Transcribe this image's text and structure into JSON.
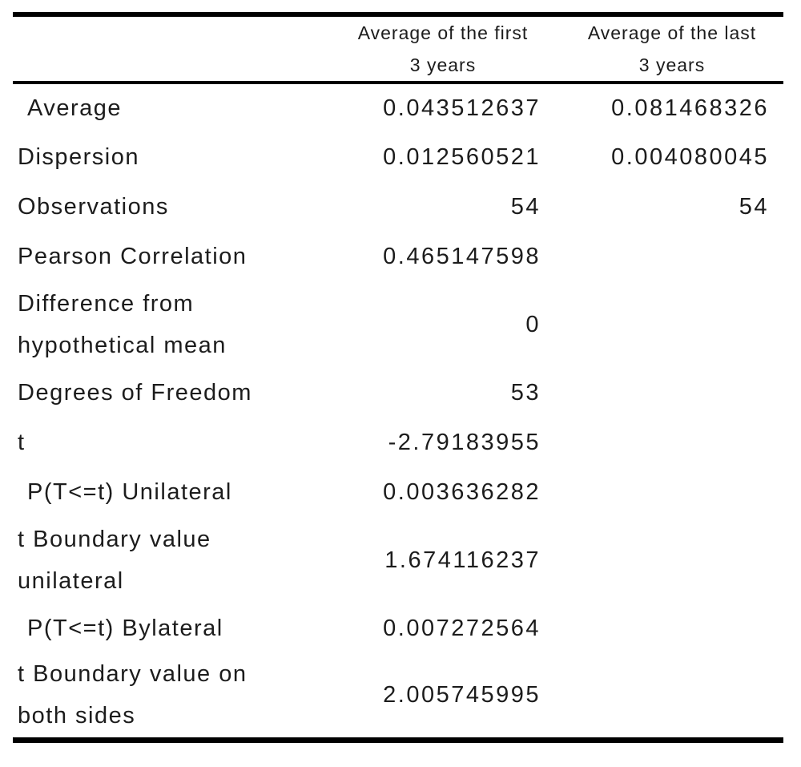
{
  "colors": {
    "background": "#ffffff",
    "text": "#1c1c1c",
    "rule": "#000000"
  },
  "chart_data": {
    "type": "table",
    "columns": {
      "label_header": "",
      "col1_header": "Average of the first\n3 years",
      "col2_header": "Average of the last\n3 years"
    },
    "rows": [
      {
        "label": "Average",
        "col1": "0.043512637",
        "col2": "0.081468326"
      },
      {
        "label": "Dispersion",
        "col1": "0.012560521",
        "col2": "0.004080045"
      },
      {
        "label": "Observations",
        "col1": "54",
        "col2": "54"
      },
      {
        "label": "Pearson Correlation",
        "col1": "0.465147598",
        "col2": ""
      },
      {
        "label": "Difference from\nhypothetical mean",
        "col1": "0",
        "col2": ""
      },
      {
        "label": "Degrees of Freedom",
        "col1": "53",
        "col2": ""
      },
      {
        "label": "t",
        "col1": "-2.79183955",
        "col2": ""
      },
      {
        "label": "P(T<=t) Unilateral",
        "col1": "0.003636282",
        "col2": ""
      },
      {
        "label": "t Boundary value\nunilateral",
        "col1": "1.674116237",
        "col2": ""
      },
      {
        "label": "P(T<=t) Bylateral",
        "col1": "0.007272564",
        "col2": ""
      },
      {
        "label": "t Boundary value on\nboth sides",
        "col1": "2.005745995",
        "col2": ""
      }
    ]
  }
}
